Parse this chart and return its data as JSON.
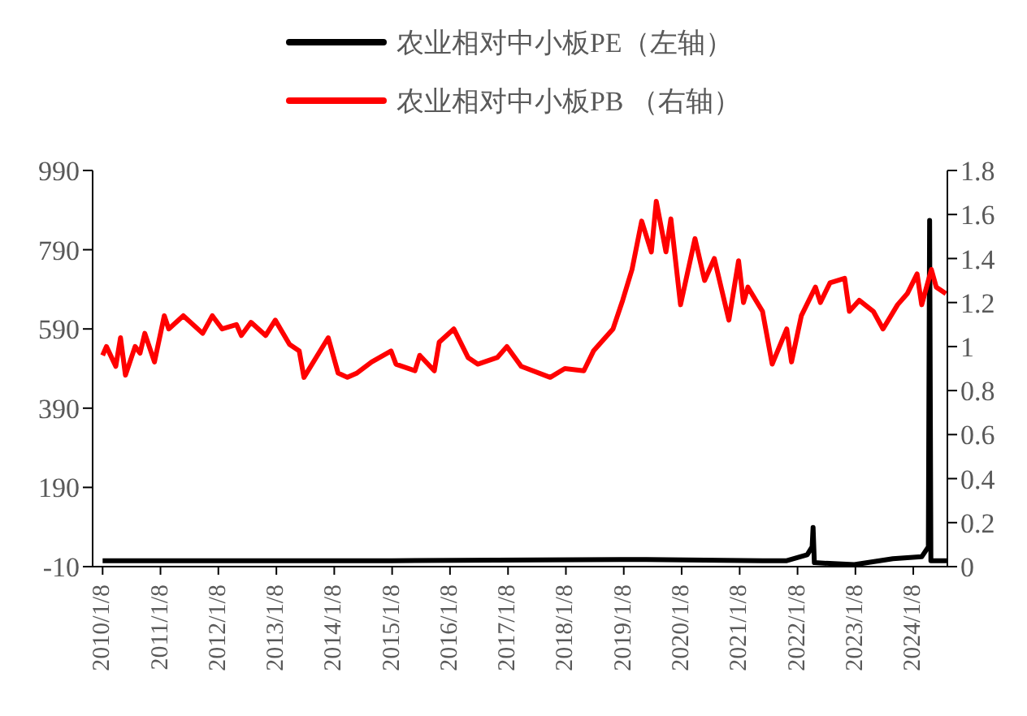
{
  "chart_data": {
    "type": "line",
    "xlim": [
      "2009-11-06",
      "2024-08-10"
    ],
    "xticks": [
      {
        "value": "2010-01-08",
        "label": "2010/1/8"
      },
      {
        "value": "2011-01-08",
        "label": "2011/1/8"
      },
      {
        "value": "2012-01-08",
        "label": "2012/1/8"
      },
      {
        "value": "2013-01-08",
        "label": "2013/1/8"
      },
      {
        "value": "2014-01-08",
        "label": "2014/1/8"
      },
      {
        "value": "2015-01-08",
        "label": "2015/1/8"
      },
      {
        "value": "2016-01-08",
        "label": "2016/1/8"
      },
      {
        "value": "2017-01-08",
        "label": "2017/1/8"
      },
      {
        "value": "2018-01-08",
        "label": "2018/1/8"
      },
      {
        "value": "2019-01-08",
        "label": "2019/1/8"
      },
      {
        "value": "2020-01-08",
        "label": "2020/1/8"
      },
      {
        "value": "2021-01-08",
        "label": "2021/1/8"
      },
      {
        "value": "2022-01-08",
        "label": "2022/1/8"
      },
      {
        "value": "2023-01-08",
        "label": "2023/1/8"
      },
      {
        "value": "2024-01-08",
        "label": "2024/1/8"
      }
    ],
    "ylim": [
      -10,
      990
    ],
    "yticks": [
      -10,
      190,
      390,
      590,
      790,
      990
    ],
    "y2lim": [
      0,
      1.8
    ],
    "y2ticks": [
      0,
      0.2,
      0.4,
      0.6,
      0.8,
      1,
      1.2,
      1.4,
      1.6,
      1.8
    ],
    "grid": false,
    "legend": "top",
    "marker": "none",
    "line_style": "solid",
    "series": [
      {
        "name": "农业相对中小板PE（左轴）",
        "color": "#000000",
        "x": [
          "2010-01-08",
          "2015-01-08",
          "2019-06-01",
          "2021-06-01",
          "2021-11-01",
          "2022-03-10",
          "2022-04-10",
          "2022-04-16",
          "2022-04-24",
          "2023-01-01",
          "2023-09-01",
          "2024-03-01",
          "2024-04-12",
          "2024-04-20",
          "2024-04-28",
          "2024-08-10"
        ],
        "values": [
          5,
          5,
          8,
          5,
          5,
          20,
          40,
          89,
          0,
          -5,
          10,
          15,
          40,
          864,
          5,
          5
        ]
      },
      {
        "name": "农业相对中小板PB （右轴）",
        "color": "#ff0000",
        "axis": "y2",
        "x": [
          "2010-01-08",
          "2010-02-01",
          "2010-04-01",
          "2010-05-01",
          "2010-06-01",
          "2010-08-01",
          "2010-09-01",
          "2010-10-01",
          "2010-12-01",
          "2011-02-01",
          "2011-03-01",
          "2011-06-01",
          "2011-10-01",
          "2011-12-01",
          "2012-02-01",
          "2012-05-01",
          "2012-06-01",
          "2012-08-01",
          "2012-11-01",
          "2013-01-01",
          "2013-04-01",
          "2013-06-01",
          "2013-07-01",
          "2013-12-01",
          "2014-02-01",
          "2014-04-01",
          "2014-06-01",
          "2014-09-01",
          "2015-01-01",
          "2015-02-01",
          "2015-06-01",
          "2015-07-01",
          "2015-10-01",
          "2015-11-01",
          "2016-02-01",
          "2016-05-01",
          "2016-07-01",
          "2016-11-01",
          "2017-01-01",
          "2017-04-01",
          "2017-10-01",
          "2018-01-01",
          "2018-05-01",
          "2018-07-01",
          "2018-11-01",
          "2019-01-01",
          "2019-03-01",
          "2019-05-01",
          "2019-07-01",
          "2019-08-01",
          "2019-10-01",
          "2019-11-01",
          "2020-01-01",
          "2020-04-01",
          "2020-06-01",
          "2020-08-01",
          "2020-11-01",
          "2021-01-01",
          "2021-02-01",
          "2021-03-01",
          "2021-06-01",
          "2021-08-01",
          "2021-11-01",
          "2021-12-01",
          "2022-02-01",
          "2022-05-01",
          "2022-06-01",
          "2022-08-01",
          "2022-11-01",
          "2022-12-01",
          "2023-02-01",
          "2023-05-01",
          "2023-07-01",
          "2023-10-01",
          "2023-12-01",
          "2024-02-01",
          "2024-03-01",
          "2024-05-01",
          "2024-06-01",
          "2024-08-01"
        ],
        "values": [
          0.96,
          1.0,
          0.91,
          1.04,
          0.87,
          1.0,
          0.97,
          1.06,
          0.93,
          1.14,
          1.08,
          1.14,
          1.06,
          1.14,
          1.08,
          1.1,
          1.05,
          1.11,
          1.05,
          1.12,
          1.01,
          0.98,
          0.86,
          1.04,
          0.88,
          0.86,
          0.88,
          0.93,
          0.98,
          0.92,
          0.89,
          0.96,
          0.89,
          1.02,
          1.08,
          0.95,
          0.92,
          0.95,
          1.0,
          0.91,
          0.86,
          0.9,
          0.89,
          0.98,
          1.08,
          1.21,
          1.35,
          1.57,
          1.43,
          1.66,
          1.43,
          1.58,
          1.19,
          1.49,
          1.3,
          1.4,
          1.12,
          1.39,
          1.2,
          1.27,
          1.16,
          0.92,
          1.08,
          0.93,
          1.14,
          1.27,
          1.2,
          1.29,
          1.31,
          1.16,
          1.21,
          1.16,
          1.08,
          1.19,
          1.24,
          1.33,
          1.19,
          1.35,
          1.27,
          1.24
        ]
      }
    ]
  }
}
